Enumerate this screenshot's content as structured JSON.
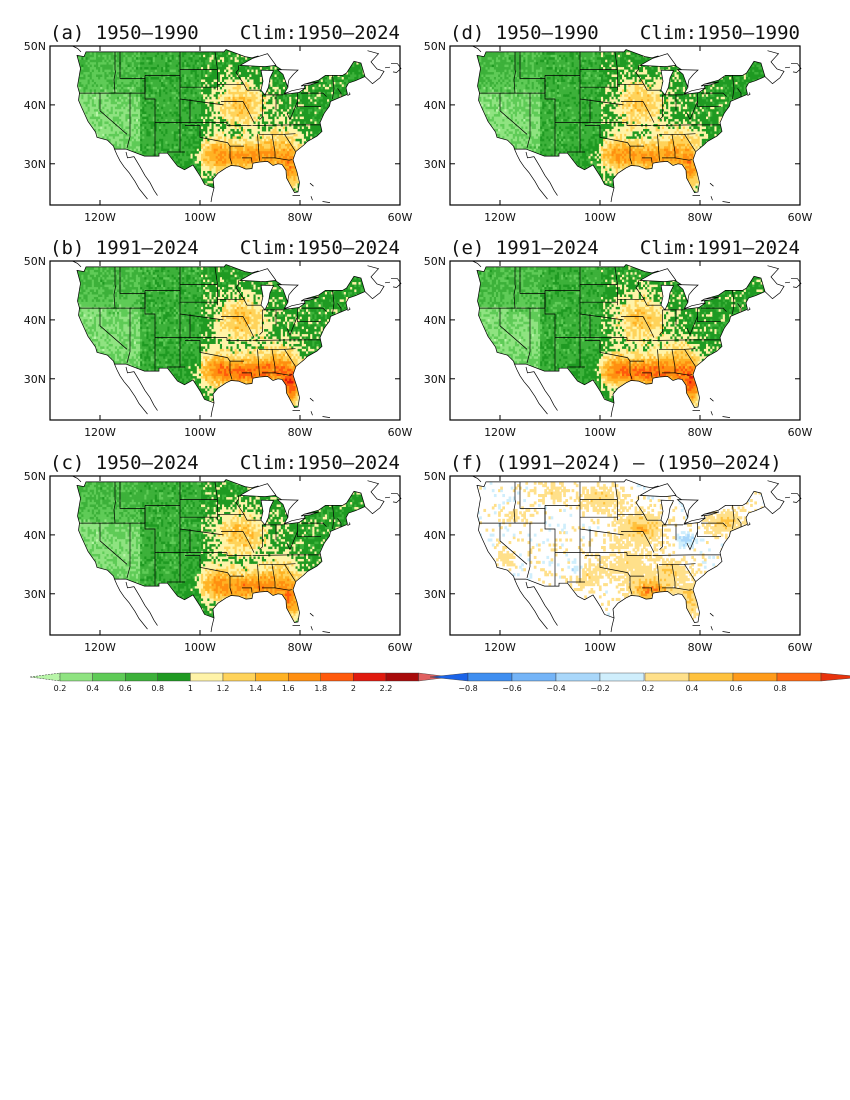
{
  "panels": [
    {
      "id": "a",
      "label": "(a)",
      "period": "1950—1990",
      "clim": "Clim:1950—2024",
      "kind": "ratio",
      "variant": "a"
    },
    {
      "id": "d",
      "label": "(d)",
      "period": "1950—1990",
      "clim": "Clim:1950—1990",
      "kind": "ratio",
      "variant": "d"
    },
    {
      "id": "b",
      "label": "(b)",
      "period": "1991—2024",
      "clim": "Clim:1950—2024",
      "kind": "ratio",
      "variant": "b"
    },
    {
      "id": "e",
      "label": "(e)",
      "period": "1991—2024",
      "clim": "Clim:1991—2024",
      "kind": "ratio",
      "variant": "e"
    },
    {
      "id": "c",
      "label": "(c)",
      "period": "1950—2024",
      "clim": "Clim:1950—2024",
      "kind": "ratio",
      "variant": "c"
    },
    {
      "id": "f",
      "label": "(f)",
      "period": "(1991—2024) — (1950—2024)",
      "clim": "",
      "kind": "diff",
      "variant": "f"
    }
  ],
  "axes": {
    "lat_labels": [
      "50N",
      "40N",
      "30N"
    ],
    "lat_values": [
      50,
      40,
      30
    ],
    "lon_labels": [
      "120W",
      "100W",
      "80W",
      "60W"
    ],
    "lon_values": [
      -120,
      -100,
      -80,
      -60
    ],
    "lon_range": [
      -130,
      -60
    ],
    "lat_range": [
      23,
      50
    ]
  },
  "colorbar_ratio": {
    "labels": [
      "0.2",
      "0.4",
      "0.6",
      "0.8",
      "1",
      "1.2",
      "1.4",
      "1.6",
      "1.8",
      "2",
      "2.2"
    ],
    "colors": [
      "#b8f5a8",
      "#8fe381",
      "#5fcb57",
      "#3db13a",
      "#1f9a22",
      "#fff3a8",
      "#ffd35a",
      "#ffb224",
      "#ff8f10",
      "#ff5a0c",
      "#e01a0e",
      "#a80b0b",
      "#e06060"
    ]
  },
  "colorbar_diff_neg": {
    "labels": [
      "−0.8",
      "−0.6",
      "−0.4",
      "−0.2"
    ],
    "colors": [
      "#1a63e8",
      "#3f8ef0",
      "#74b4f7",
      "#a9d7fa",
      "#cfeefc"
    ]
  },
  "colorbar_diff_pos": {
    "labels": [
      "0.2",
      "0.4",
      "0.6",
      "0.8"
    ],
    "colors": [
      "#ffe08a",
      "#ffc23e",
      "#ff9b1a",
      "#ff6a12",
      "#e8330c"
    ]
  },
  "colors": {
    "frame": "#000000",
    "land_boundary": "#000000"
  }
}
